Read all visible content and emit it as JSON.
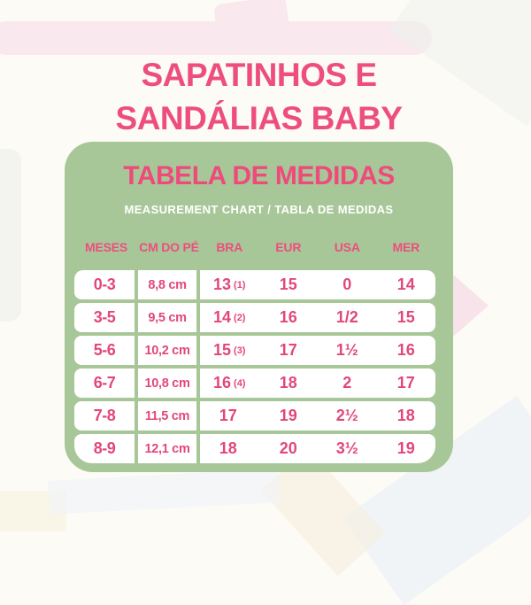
{
  "page": {
    "title_line1": "SAPATINHOS E",
    "title_line2": "SANDÁLIAS BABY"
  },
  "panel": {
    "title": "TABELA DE MEDIDAS",
    "subtitle": "MEASUREMENT CHART / TABLA DE MEDIDAS"
  },
  "table": {
    "headers": [
      "MESES",
      "CM DO PÉ",
      "BRA",
      "EUR",
      "USA",
      "MER"
    ],
    "rows": [
      {
        "meses": "0-3",
        "cm": "8,8 cm",
        "bra": "13",
        "bra_note": "(1)",
        "eur": "15",
        "usa": "0",
        "mer": "14"
      },
      {
        "meses": "3-5",
        "cm": "9,5 cm",
        "bra": "14",
        "bra_note": "(2)",
        "eur": "16",
        "usa": "1/2",
        "mer": "15"
      },
      {
        "meses": "5-6",
        "cm": "10,2 cm",
        "bra": "15",
        "bra_note": "(3)",
        "eur": "17",
        "usa": "1½",
        "mer": "16"
      },
      {
        "meses": "6-7",
        "cm": "10,8 cm",
        "bra": "16",
        "bra_note": "(4)",
        "eur": "18",
        "usa": "2",
        "mer": "17"
      },
      {
        "meses": "7-8",
        "cm": "11,5 cm",
        "bra": "17",
        "bra_note": "",
        "eur": "19",
        "usa": "2½",
        "mer": "18"
      },
      {
        "meses": "8-9",
        "cm": "12,1 cm",
        "bra": "18",
        "bra_note": "",
        "eur": "20",
        "usa": "3½",
        "mer": "19"
      }
    ]
  },
  "colors": {
    "pink_primary": "#ed4e7d",
    "pink_table_text": "#e2477a",
    "green_panel": "#a8c798",
    "cell_white": "#ffffff",
    "page_background": "#fcfbf6"
  }
}
